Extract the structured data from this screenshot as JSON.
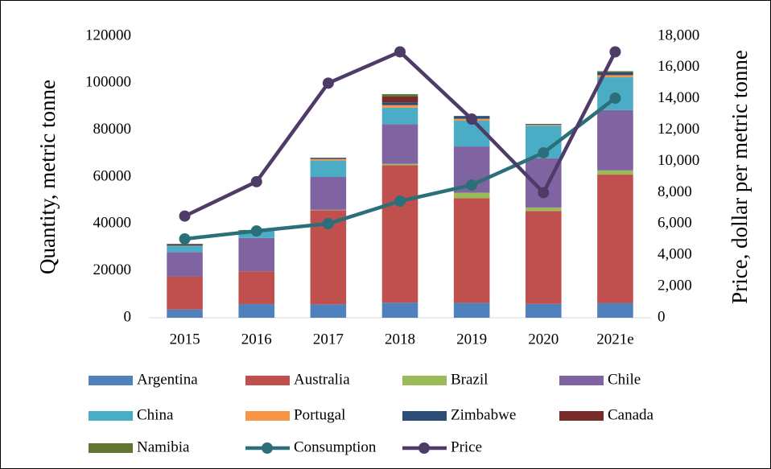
{
  "chart_data": {
    "type": "bar",
    "stacked": true,
    "categories": [
      "2015",
      "2016",
      "2017",
      "2018",
      "2019",
      "2020",
      "2021e"
    ],
    "ylabel": "Quantity, metric tonne",
    "y2label": "Price, dollar per metric tonne",
    "ylim": [
      0,
      120000
    ],
    "yticks": [
      0,
      20000,
      40000,
      60000,
      80000,
      100000,
      120000
    ],
    "y2lim": [
      0,
      18000
    ],
    "y2ticks": [
      0,
      {
        "value": 2000,
        "label": "2,000"
      },
      {
        "value": 4000,
        "label": "4,000"
      },
      {
        "value": 6000,
        "label": "6,000"
      },
      {
        "value": 8000,
        "label": "8,000"
      },
      {
        "value": 10000,
        "label": "10,000"
      },
      {
        "value": 12000,
        "label": "12,000"
      },
      {
        "value": 14000,
        "label": "14,000"
      },
      {
        "value": 16000,
        "label": "16,000"
      },
      {
        "value": 18000,
        "label": "18,000"
      }
    ],
    "grid": false,
    "legend": "bottom",
    "series": [
      {
        "name": "Argentina",
        "color": "#4f81bd",
        "values": [
          3500,
          5800,
          5700,
          6400,
          6300,
          5900,
          6200
        ]
      },
      {
        "name": "Australia",
        "color": "#c0504d",
        "values": [
          14000,
          14000,
          40100,
          58600,
          44700,
          39600,
          54800
        ]
      },
      {
        "name": "Brazil",
        "color": "#9bbb59",
        "values": [
          0,
          0,
          200,
          600,
          2300,
          1500,
          1800
        ]
      },
      {
        "name": "Chile",
        "color": "#8064a2",
        "values": [
          10500,
          14200,
          14000,
          16900,
          19700,
          21000,
          25700
        ]
      },
      {
        "name": "China",
        "color": "#4bacc6",
        "values": [
          2500,
          3000,
          7000,
          7000,
          11000,
          13800,
          14000
        ]
      },
      {
        "name": "Portugal",
        "color": "#f79646",
        "values": [
          200,
          200,
          700,
          1100,
          800,
          400,
          900
        ]
      },
      {
        "name": "Zimbabwe",
        "color": "#2c4d75",
        "values": [
          600,
          200,
          500,
          1200,
          1200,
          400,
          1200
        ]
      },
      {
        "name": "Canada",
        "color": "#772c2a",
        "values": [
          200,
          0,
          0,
          2500,
          0,
          0,
          0
        ]
      },
      {
        "name": "Namibia",
        "color": "#5f7530",
        "values": [
          0,
          0,
          0,
          1000,
          0,
          0,
          500
        ]
      },
      {
        "name": "Consumption",
        "color": "#2a6f7a",
        "type": "line",
        "axis": "y",
        "values": [
          33600,
          37000,
          40100,
          49700,
          56600,
          70300,
          93600
        ]
      },
      {
        "name": "Price",
        "color": "#4e3b68",
        "type": "line",
        "axis": "y2",
        "values": [
          6500,
          8700,
          15000,
          17000,
          12700,
          8000,
          17000
        ]
      }
    ]
  }
}
